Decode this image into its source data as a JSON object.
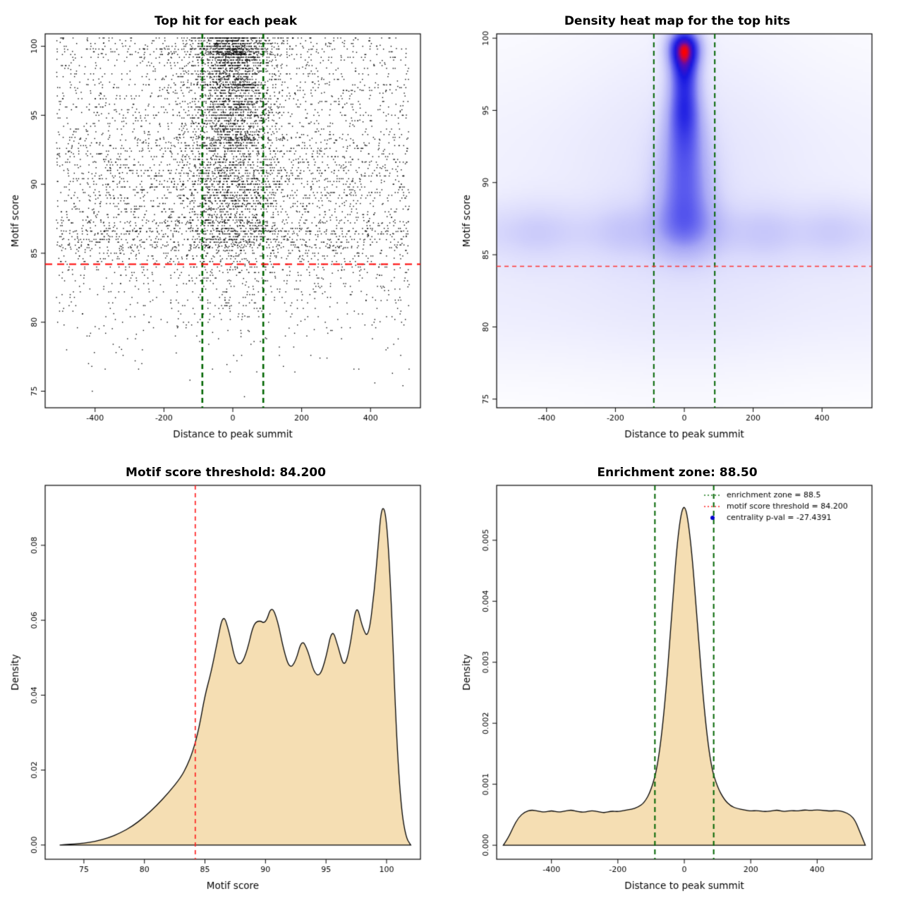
{
  "page": {
    "background": "#ffffff"
  },
  "chart_data": [
    {
      "type": "scatter",
      "title": "Top hit for each peak",
      "xlabel": "Distance to peak summit",
      "ylabel": "Motif score",
      "xlim": [
        -545,
        545
      ],
      "ylim": [
        73.8,
        100.9
      ],
      "xticks": [
        -400,
        -200,
        0,
        200,
        400
      ],
      "yticks": [
        75,
        80,
        85,
        90,
        95,
        100
      ],
      "n_points": 8000,
      "seed": 42,
      "point_color": "#000000",
      "point_size": 1.4,
      "score_range": [
        74.2,
        100.6
      ],
      "quantize_step": 0.2,
      "quantize_prob": 0.8,
      "hot_rows": [
        99.8,
        99.5,
        97.2,
        95.0,
        93.3,
        87.3,
        86.6,
        86.0,
        85.5
      ],
      "hot_row_prob": 0.07,
      "central": {
        "sd_high": 52,
        "sd_low": 70,
        "mid_sd": 170,
        "mid_prob": 0.12,
        "prob_by_score": [
          [
            85,
            0.08
          ],
          [
            88,
            0.2
          ],
          [
            93,
            0.32
          ],
          [
            97,
            0.47
          ],
          [
            101,
            0.62
          ]
        ]
      },
      "x_uniform": [
        -512,
        512
      ],
      "enrichment_zone": 88.5,
      "score_threshold": 84.2,
      "vlines": [
        {
          "x": -88.5,
          "color": "#006400",
          "width": 2.6,
          "dash": [
            7,
            5
          ]
        },
        {
          "x": 88.5,
          "color": "#006400",
          "width": 2.6,
          "dash": [
            7,
            5
          ]
        }
      ],
      "hlines": [
        {
          "y": 84.2,
          "color": "#ff0000",
          "width": 2,
          "dash": [
            10,
            7
          ]
        }
      ]
    },
    {
      "type": "heatmap",
      "title": "Density heat map for the top hits",
      "xlabel": "Distance to peak summit",
      "ylabel": "Motif score",
      "xlim": [
        -545,
        545
      ],
      "ylim": [
        74.4,
        100.3
      ],
      "xticks": [
        -400,
        -200,
        0,
        200,
        400
      ],
      "yticks": [
        75,
        80,
        85,
        90,
        95,
        100
      ],
      "grid": [
        190,
        150
      ],
      "gamma": 0.6,
      "kernels": [
        {
          "x0": 0,
          "y0": 99.4,
          "sx": 30,
          "sy": 0.85,
          "amp": 1.0
        },
        {
          "x0": 0,
          "y0": 98.2,
          "sx": 28,
          "sy": 1.0,
          "amp": 0.55
        },
        {
          "x0": 0,
          "y0": 96.6,
          "sx": 30,
          "sy": 1.2,
          "amp": 0.5
        },
        {
          "x0": 0,
          "y0": 94.9,
          "sx": 32,
          "sy": 1.1,
          "amp": 0.36
        },
        {
          "x0": 0,
          "y0": 93.4,
          "sx": 38,
          "sy": 1.4,
          "amp": 0.36
        },
        {
          "x0": 0,
          "y0": 91.2,
          "sx": 48,
          "sy": 1.8,
          "amp": 0.3
        },
        {
          "x0": 0,
          "y0": 89.0,
          "sx": 55,
          "sy": 2.0,
          "amp": 0.27
        },
        {
          "x0": 0,
          "y0": 87.0,
          "sx": 65,
          "sy": 1.6,
          "amp": 0.26
        },
        {
          "x0": 0,
          "y0": 90.5,
          "sx": 230,
          "sy": 7.5,
          "amp": 0.055
        },
        {
          "x0": null,
          "y0": 86.6,
          "sx": null,
          "sy": 1.3,
          "amp": 0.095
        },
        {
          "x0": null,
          "y0": 83.5,
          "sx": null,
          "sy": 2.8,
          "amp": 0.04
        },
        {
          "x0": null,
          "y0": 91.5,
          "sx": null,
          "sy": 4.5,
          "amp": 0.03
        },
        {
          "x0": -430,
          "y0": 86.6,
          "sx": 60,
          "sy": 1.5,
          "amp": 0.05
        },
        {
          "x0": -180,
          "y0": 86.8,
          "sx": 50,
          "sy": 1.5,
          "amp": 0.05
        },
        {
          "x0": 240,
          "y0": 86.5,
          "sx": 55,
          "sy": 1.5,
          "amp": 0.05
        },
        {
          "x0": 430,
          "y0": 86.7,
          "sx": 60,
          "sy": 1.5,
          "amp": 0.05
        },
        {
          "x0": null,
          "y0": 79.5,
          "sx": null,
          "sy": 2.2,
          "amp": 0.018
        }
      ],
      "colormap": [
        [
          0,
          "#ffffff"
        ],
        [
          0.1,
          "#f2f2fe"
        ],
        [
          0.25,
          "#d9d9fc"
        ],
        [
          0.45,
          "#a9a9f6"
        ],
        [
          0.62,
          "#5a5aee"
        ],
        [
          0.78,
          "#1616e0"
        ],
        [
          0.9,
          "#5a0cb4"
        ],
        [
          0.96,
          "#c40846"
        ],
        [
          1,
          "#ff0000"
        ]
      ],
      "enrichment_zone": 88.5,
      "score_threshold": 84.2,
      "vlines": [
        {
          "x": -88.5,
          "color": "#006400",
          "width": 2,
          "dash": [
            7,
            5
          ]
        },
        {
          "x": 88.5,
          "color": "#006400",
          "width": 2,
          "dash": [
            7,
            5
          ]
        }
      ],
      "hlines": [
        {
          "y": 84.2,
          "color": "#ff3333",
          "width": 1.4,
          "dash": [
            6,
            5
          ]
        }
      ]
    },
    {
      "type": "area",
      "title": "Motif score threshold: 84.200",
      "xlabel": "Motif score",
      "ylabel": "Density",
      "xlim": [
        71.8,
        102.8
      ],
      "ylim": [
        -0.0038,
        0.096
      ],
      "xticks": [
        75,
        80,
        85,
        90,
        95,
        100
      ],
      "yticks": [
        0,
        0.02,
        0.04,
        0.06,
        0.08
      ],
      "ytick_labels": [
        "0.00",
        "0.02",
        "0.04",
        "0.06",
        "0.08"
      ],
      "fill": "#f5deb3",
      "stroke": "#000000",
      "score_threshold": 84.2,
      "curve_x": [
        73,
        74,
        75,
        76,
        77,
        78,
        79,
        80,
        81,
        82,
        83,
        83.5,
        84,
        84.5,
        85,
        85.5,
        86,
        86.5,
        87,
        87.5,
        88,
        88.5,
        89,
        89.5,
        90,
        90.5,
        91,
        91.5,
        92,
        92.5,
        93,
        93.5,
        94,
        94.5,
        95,
        95.5,
        96,
        96.5,
        97,
        97.5,
        98,
        98.5,
        99,
        99.3,
        99.6,
        100,
        100.4,
        100.8,
        101.2,
        101.6,
        102
      ],
      "curve_y": [
        0,
        0.0002,
        0.0005,
        0.001,
        0.0019,
        0.0032,
        0.005,
        0.0075,
        0.0105,
        0.014,
        0.018,
        0.021,
        0.025,
        0.031,
        0.04,
        0.046,
        0.054,
        0.062,
        0.057,
        0.049,
        0.048,
        0.052,
        0.059,
        0.06,
        0.059,
        0.064,
        0.06,
        0.052,
        0.047,
        0.049,
        0.055,
        0.052,
        0.046,
        0.045,
        0.05,
        0.058,
        0.053,
        0.047,
        0.053,
        0.065,
        0.058,
        0.055,
        0.068,
        0.08,
        0.091,
        0.088,
        0.065,
        0.03,
        0.01,
        0.002,
        0
      ],
      "vlines": [
        {
          "x": 84.2,
          "color": "#ff2222",
          "width": 1.7,
          "dash": [
            6,
            5
          ]
        }
      ]
    },
    {
      "type": "area",
      "title": "Enrichment zone: 88.50",
      "xlabel": "Distance to peak summit",
      "ylabel": "Density",
      "xlim": [
        -565,
        565
      ],
      "ylim": [
        -0.00023,
        0.0059
      ],
      "xticks": [
        -400,
        -200,
        0,
        200,
        400
      ],
      "yticks": [
        0,
        0.001,
        0.002,
        0.003,
        0.004,
        0.005
      ],
      "ytick_labels": [
        "0.000",
        "0.001",
        "0.002",
        "0.003",
        "0.004",
        "0.005"
      ],
      "fill": "#f5deb3",
      "stroke": "#000000",
      "enrichment_zone": 88.5,
      "curve_x": [
        -545,
        -530,
        -515,
        -500,
        -480,
        -460,
        -440,
        -420,
        -400,
        -380,
        -360,
        -340,
        -320,
        -300,
        -280,
        -260,
        -240,
        -220,
        -200,
        -180,
        -160,
        -140,
        -120,
        -100,
        -80,
        -60,
        -40,
        -20,
        0,
        20,
        40,
        60,
        80,
        100,
        120,
        140,
        160,
        180,
        200,
        220,
        240,
        260,
        280,
        300,
        320,
        340,
        360,
        380,
        400,
        420,
        440,
        460,
        480,
        500,
        515,
        530,
        545
      ],
      "curve_y": [
        0,
        0.00012,
        0.0003,
        0.00045,
        0.00055,
        0.00058,
        0.00056,
        0.00054,
        0.00057,
        0.00054,
        0.00056,
        0.00058,
        0.00055,
        0.00054,
        0.00057,
        0.00055,
        0.00053,
        0.00056,
        0.00055,
        0.00057,
        0.00059,
        0.00062,
        0.0007,
        0.0009,
        0.0013,
        0.0022,
        0.0036,
        0.0051,
        0.0057,
        0.005,
        0.0036,
        0.0022,
        0.0013,
        0.00095,
        0.00075,
        0.00064,
        0.0006,
        0.00058,
        0.00056,
        0.00057,
        0.00055,
        0.00056,
        0.00058,
        0.00055,
        0.00057,
        0.00056,
        0.00058,
        0.00057,
        0.00058,
        0.00057,
        0.00056,
        0.00057,
        0.00055,
        0.0005,
        0.0004,
        0.0002,
        0
      ],
      "vlines": [
        {
          "x": -88.5,
          "color": "#006400",
          "width": 2,
          "dash": [
            7,
            5
          ]
        },
        {
          "x": 88.5,
          "color": "#006400",
          "width": 2,
          "dash": [
            7,
            5
          ]
        }
      ],
      "legend": {
        "items": [
          {
            "marker": "line",
            "color": "#1a7a1a",
            "dash": [
              2,
              3
            ],
            "label": "enrichment zone = 88.5"
          },
          {
            "marker": "line",
            "color": "#ff2222",
            "dash": [
              2,
              3
            ],
            "label": "motif score threshold = 84.200"
          },
          {
            "marker": "point",
            "color": "#0000cc",
            "label": "centrality p-val = -27.4391"
          }
        ]
      }
    }
  ]
}
